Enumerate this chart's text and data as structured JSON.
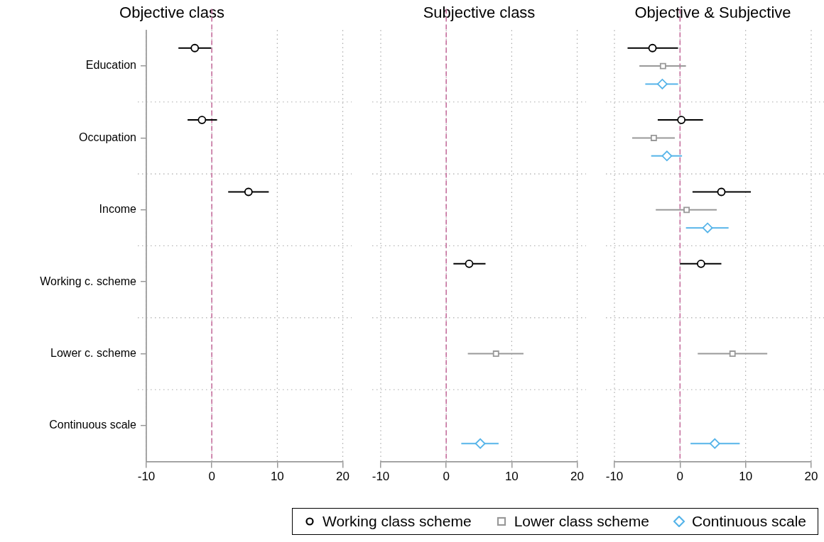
{
  "chart_data": [
    {
      "type": "scatter",
      "orientation": "horizontal",
      "title": "Objective class",
      "categories": [
        "Education",
        "Occupation",
        "Income",
        "Working c. scheme",
        "Lower c. scheme",
        "Continuous scale"
      ],
      "xlim": [
        -10,
        20
      ],
      "xticks": [
        -10,
        0,
        10,
        20
      ],
      "grid": true,
      "ref_lines": [
        {
          "axis": "x",
          "value": 0,
          "color": "#c7709f",
          "line_style": "dashed"
        }
      ],
      "series": [
        {
          "color": "#000000",
          "marker": "circle",
          "values": [
            -2.6,
            -1.5,
            5.6,
            null,
            null,
            null
          ],
          "errors": [
            [
              -5.1,
              -0.1
            ],
            [
              -3.7,
              0.8
            ],
            [
              2.5,
              8.7
            ],
            null,
            null,
            null
          ]
        },
        {
          "color": "#999999",
          "marker": "square",
          "values": [
            null,
            null,
            null,
            null,
            null,
            null
          ],
          "errors": [
            null,
            null,
            null,
            null,
            null,
            null
          ]
        },
        {
          "color": "#56b4e9",
          "marker": "diamond",
          "values": [
            null,
            null,
            null,
            null,
            null,
            null
          ],
          "errors": [
            null,
            null,
            null,
            null,
            null,
            null
          ]
        }
      ]
    },
    {
      "type": "scatter",
      "orientation": "horizontal",
      "title": "Subjective class",
      "categories": [
        null,
        null,
        null,
        null,
        null,
        null
      ],
      "xlim": [
        -10,
        20
      ],
      "xticks": [
        -10,
        0,
        10,
        20
      ],
      "grid": true,
      "tick_labels": "x",
      "ref_lines": [
        {
          "axis": "x",
          "value": 0,
          "color": "#c7709f",
          "line_style": "dashed"
        }
      ],
      "series": [
        {
          "color": "#000000",
          "marker": "circle",
          "values": [
            null,
            null,
            null,
            3.5,
            null,
            null
          ],
          "errors": [
            null,
            null,
            null,
            [
              1.1,
              6.0
            ],
            null,
            null
          ]
        },
        {
          "color": "#999999",
          "marker": "square",
          "values": [
            null,
            null,
            null,
            null,
            7.6,
            null
          ],
          "errors": [
            null,
            null,
            null,
            null,
            [
              3.3,
              11.8
            ],
            null
          ]
        },
        {
          "color": "#56b4e9",
          "marker": "diamond",
          "values": [
            null,
            null,
            null,
            null,
            null,
            5.2
          ],
          "errors": [
            null,
            null,
            null,
            null,
            null,
            [
              2.3,
              8.0
            ]
          ]
        }
      ]
    },
    {
      "type": "scatter",
      "orientation": "horizontal",
      "title": "Objective & Subjective",
      "categories": [
        null,
        null,
        null,
        null,
        null,
        null
      ],
      "xlim": [
        -10,
        20
      ],
      "xticks": [
        -10,
        0,
        10,
        20
      ],
      "grid": true,
      "tick_labels": "x",
      "legend": "bottom left",
      "ref_lines": [
        {
          "axis": "x",
          "value": 0,
          "color": "#c7709f",
          "line_style": "dashed"
        }
      ],
      "series": [
        {
          "name": "Working class scheme",
          "color": "#000000",
          "marker": "circle",
          "values": [
            -4.2,
            0.2,
            6.3,
            3.2,
            null,
            null
          ],
          "errors": [
            [
              -8.0,
              -0.3
            ],
            [
              -3.4,
              3.5
            ],
            [
              1.9,
              10.8
            ],
            [
              0.0,
              6.3
            ],
            null,
            null
          ]
        },
        {
          "name": "Lower class scheme",
          "color": "#999999",
          "marker": "square",
          "values": [
            -2.6,
            -4.0,
            1.0,
            null,
            8.0,
            null
          ],
          "errors": [
            [
              -6.2,
              0.9
            ],
            [
              -7.3,
              -0.8
            ],
            [
              -3.7,
              5.6
            ],
            null,
            [
              2.7,
              13.3
            ],
            null
          ]
        },
        {
          "name": "Continuous scale",
          "color": "#56b4e9",
          "marker": "diamond",
          "values": [
            -2.7,
            -2.0,
            4.2,
            null,
            null,
            5.3
          ],
          "errors": [
            [
              -5.3,
              -0.3
            ],
            [
              -4.4,
              0.3
            ],
            [
              0.9,
              7.4
            ],
            null,
            null,
            [
              1.6,
              9.1
            ]
          ]
        }
      ]
    }
  ]
}
